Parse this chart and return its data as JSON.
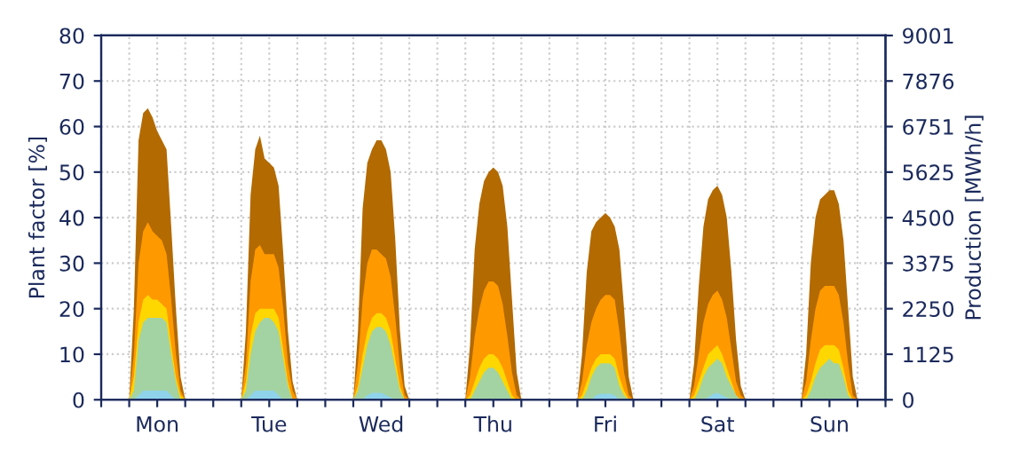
{
  "chart_data": {
    "type": "area",
    "ylabel": "Plant factor [%]",
    "y2label": "Production [MWh/h]",
    "categories": [
      null,
      null,
      null,
      null,
      null,
      null,
      null,
      null,
      null,
      null,
      null,
      null,
      "Mon",
      null,
      null,
      null,
      null,
      null,
      null,
      null,
      null,
      null,
      null,
      null,
      null,
      null,
      null,
      null,
      null,
      null,
      null,
      null,
      null,
      null,
      null,
      null,
      "Tue",
      null,
      null,
      null,
      null,
      null,
      null,
      null,
      null,
      null,
      null,
      null,
      null,
      null,
      null,
      null,
      null,
      null,
      null,
      null,
      null,
      null,
      null,
      null,
      "Wed",
      null,
      null,
      null,
      null,
      null,
      null,
      null,
      null,
      null,
      null,
      null,
      null,
      null,
      null,
      null,
      null,
      null,
      null,
      null,
      null,
      null,
      null,
      null,
      "Thu",
      null,
      null,
      null,
      null,
      null,
      null,
      null,
      null,
      null,
      null,
      null,
      null,
      null,
      null,
      null,
      null,
      null,
      null,
      null,
      null,
      null,
      null,
      null,
      "Fri",
      null,
      null,
      null,
      null,
      null,
      null,
      null,
      null,
      null,
      null,
      null,
      null,
      null,
      null,
      null,
      null,
      null,
      null,
      null,
      null,
      null,
      null,
      null,
      "Sat",
      null,
      null,
      null,
      null,
      null,
      null,
      null,
      null,
      null,
      null,
      null,
      null,
      null,
      null,
      null,
      null,
      null,
      null,
      null,
      null,
      null,
      null,
      null,
      "Sun",
      null,
      null,
      null,
      null,
      null,
      null,
      null,
      null,
      null,
      null,
      null
    ],
    "series": [
      {
        "color": "#b36a00",
        "values": [
          0,
          0,
          0,
          0,
          0,
          0,
          0,
          20,
          57,
          63,
          64,
          62,
          59,
          57,
          55,
          38,
          20,
          5,
          0,
          0,
          0,
          0,
          0,
          0,
          0,
          0,
          0,
          0,
          0,
          0,
          0,
          15,
          45,
          55,
          58,
          53,
          52,
          51,
          47,
          32,
          15,
          4,
          0,
          0,
          0,
          0,
          0,
          0,
          0,
          0,
          0,
          0,
          0,
          0,
          0,
          15,
          42,
          52,
          55,
          57,
          57,
          55,
          50,
          35,
          15,
          3,
          0,
          0,
          0,
          0,
          0,
          0,
          0,
          0,
          0,
          0,
          0,
          0,
          0,
          12,
          33,
          43,
          48,
          50,
          51,
          50,
          47,
          38,
          22,
          6,
          0,
          0,
          0,
          0,
          0,
          0,
          0,
          0,
          0,
          0,
          0,
          0,
          0,
          10,
          28,
          37,
          39,
          40,
          41,
          40,
          38,
          33,
          20,
          5,
          0,
          0,
          0,
          0,
          0,
          0,
          0,
          0,
          0,
          0,
          0,
          0,
          0,
          8,
          25,
          38,
          44,
          46,
          47,
          45,
          40,
          28,
          13,
          3,
          0,
          0,
          0,
          0,
          0,
          0,
          0,
          0,
          0,
          0,
          0,
          0,
          0,
          10,
          30,
          40,
          44,
          45,
          46,
          46,
          43,
          35,
          20,
          5,
          0,
          0,
          0,
          0,
          0,
          0
        ]
      },
      {
        "color": "#ff9900",
        "values": [
          0,
          0,
          0,
          0,
          0,
          0,
          0,
          10,
          30,
          37,
          39,
          37,
          36,
          35,
          32,
          22,
          10,
          2,
          0,
          0,
          0,
          0,
          0,
          0,
          0,
          0,
          0,
          0,
          0,
          0,
          0,
          8,
          26,
          33,
          34,
          32,
          32,
          32,
          29,
          20,
          8,
          2,
          0,
          0,
          0,
          0,
          0,
          0,
          0,
          0,
          0,
          0,
          0,
          0,
          0,
          8,
          22,
          30,
          33,
          33,
          32,
          31,
          27,
          18,
          7,
          1,
          0,
          0,
          0,
          0,
          0,
          0,
          0,
          0,
          0,
          0,
          0,
          0,
          0,
          5,
          14,
          20,
          24,
          26,
          26,
          25,
          21,
          14,
          6,
          1,
          0,
          0,
          0,
          0,
          0,
          0,
          0,
          0,
          0,
          0,
          0,
          0,
          0,
          4,
          12,
          17,
          20,
          22,
          23,
          23,
          22,
          15,
          6,
          1,
          0,
          0,
          0,
          0,
          0,
          0,
          0,
          0,
          0,
          0,
          0,
          0,
          0,
          3,
          10,
          17,
          21,
          23,
          24,
          22,
          18,
          11,
          4,
          1,
          0,
          0,
          0,
          0,
          0,
          0,
          0,
          0,
          0,
          0,
          0,
          0,
          0,
          4,
          13,
          20,
          24,
          25,
          25,
          25,
          23,
          17,
          8,
          1,
          0,
          0,
          0,
          0,
          0,
          0
        ]
      },
      {
        "color": "#ffd700",
        "values": [
          0,
          0,
          0,
          0,
          0,
          0,
          0,
          5,
          17,
          22,
          23,
          22,
          22,
          21,
          20,
          12,
          5,
          1,
          0,
          0,
          0,
          0,
          0,
          0,
          0,
          0,
          0,
          0,
          0,
          0,
          0,
          4,
          14,
          19,
          20,
          20,
          20,
          20,
          18,
          11,
          4,
          0,
          0,
          0,
          0,
          0,
          0,
          0,
          0,
          0,
          0,
          0,
          0,
          0,
          0,
          3,
          10,
          15,
          18,
          19,
          19,
          18,
          15,
          9,
          3,
          0,
          0,
          0,
          0,
          0,
          0,
          0,
          0,
          0,
          0,
          0,
          0,
          0,
          0,
          1,
          4,
          7,
          9,
          10,
          10,
          9,
          7,
          4,
          1,
          0,
          0,
          0,
          0,
          0,
          0,
          0,
          0,
          0,
          0,
          0,
          0,
          0,
          0,
          1,
          4,
          7,
          9,
          10,
          10,
          10,
          9,
          5,
          2,
          0,
          0,
          0,
          0,
          0,
          0,
          0,
          0,
          0,
          0,
          0,
          0,
          0,
          0,
          1,
          4,
          7,
          10,
          11,
          12,
          10,
          7,
          4,
          1,
          0,
          0,
          0,
          0,
          0,
          0,
          0,
          0,
          0,
          0,
          0,
          0,
          0,
          0,
          1,
          4,
          8,
          11,
          12,
          12,
          12,
          11,
          7,
          2,
          0,
          0,
          0,
          0,
          0,
          0,
          0
        ]
      },
      {
        "color": "#a3d3a3",
        "values": [
          0,
          0,
          0,
          0,
          0,
          0,
          0,
          2,
          13,
          17,
          18,
          18,
          18,
          18,
          17,
          10,
          4,
          0,
          0,
          0,
          0,
          0,
          0,
          0,
          0,
          0,
          0,
          0,
          0,
          0,
          0,
          2,
          10,
          15,
          17,
          18,
          18,
          17,
          15,
          9,
          3,
          0,
          0,
          0,
          0,
          0,
          0,
          0,
          0,
          0,
          0,
          0,
          0,
          0,
          0,
          2,
          7,
          12,
          15,
          16,
          16,
          15,
          12,
          7,
          2,
          0,
          0,
          0,
          0,
          0,
          0,
          0,
          0,
          0,
          0,
          0,
          0,
          0,
          0,
          0,
          2,
          4,
          6,
          7,
          7,
          6,
          4,
          2,
          0,
          0,
          0,
          0,
          0,
          0,
          0,
          0,
          0,
          0,
          0,
          0,
          0,
          0,
          0,
          0,
          2,
          5,
          7,
          8,
          8,
          8,
          7,
          3,
          1,
          0,
          0,
          0,
          0,
          0,
          0,
          0,
          0,
          0,
          0,
          0,
          0,
          0,
          0,
          0,
          2,
          5,
          7,
          8,
          9,
          8,
          5,
          3,
          1,
          0,
          0,
          0,
          0,
          0,
          0,
          0,
          0,
          0,
          0,
          0,
          0,
          0,
          0,
          0,
          2,
          5,
          7,
          8,
          9,
          8,
          8,
          5,
          1,
          0,
          0,
          0,
          0,
          0,
          0,
          0
        ]
      },
      {
        "color": "#8fd3eb",
        "values": [
          0,
          0,
          0,
          0,
          0,
          0,
          0,
          0,
          1,
          2,
          2,
          2,
          2,
          2,
          2,
          1,
          0,
          0,
          0,
          0,
          0,
          0,
          0,
          0,
          0,
          0,
          0,
          0,
          0,
          0,
          0,
          0,
          1,
          2,
          2,
          2,
          2,
          2,
          1,
          0,
          0,
          0,
          0,
          0,
          0,
          0,
          0,
          0,
          0,
          0,
          0,
          0,
          0,
          0,
          0,
          0,
          0,
          1,
          1.5,
          1.5,
          1.5,
          1,
          0.5,
          0,
          0,
          0,
          0,
          0,
          0,
          0,
          0,
          0,
          0,
          0,
          0,
          0,
          0,
          0,
          0,
          0,
          0,
          0,
          0,
          0,
          0,
          0,
          0,
          0,
          0,
          0,
          0,
          0,
          0,
          0,
          0,
          0,
          0,
          0,
          0,
          0,
          0,
          0,
          0,
          0,
          0,
          0,
          1,
          1.3,
          1.3,
          1.3,
          1,
          0,
          0,
          0,
          0,
          0,
          0,
          0,
          0,
          0,
          0,
          0,
          0,
          0,
          0,
          0,
          0,
          0,
          0,
          0,
          0.5,
          1.2,
          1.5,
          1,
          0.5,
          0,
          0,
          0,
          0,
          0,
          0,
          0,
          0,
          0,
          0,
          0,
          0,
          0,
          0,
          0,
          0,
          0,
          0,
          0,
          0,
          0,
          0,
          0,
          0,
          0,
          0,
          0,
          0,
          0,
          0,
          0,
          0,
          0
        ]
      }
    ],
    "ylim": [
      0,
      80
    ],
    "yticks": [
      0,
      10,
      20,
      30,
      40,
      50,
      60,
      70,
      80
    ],
    "y2lim": [
      0,
      9001
    ],
    "y2ticks": [
      0,
      1125,
      2250,
      3375,
      4500,
      5625,
      6751,
      7876,
      9001
    ],
    "grid": true
  }
}
